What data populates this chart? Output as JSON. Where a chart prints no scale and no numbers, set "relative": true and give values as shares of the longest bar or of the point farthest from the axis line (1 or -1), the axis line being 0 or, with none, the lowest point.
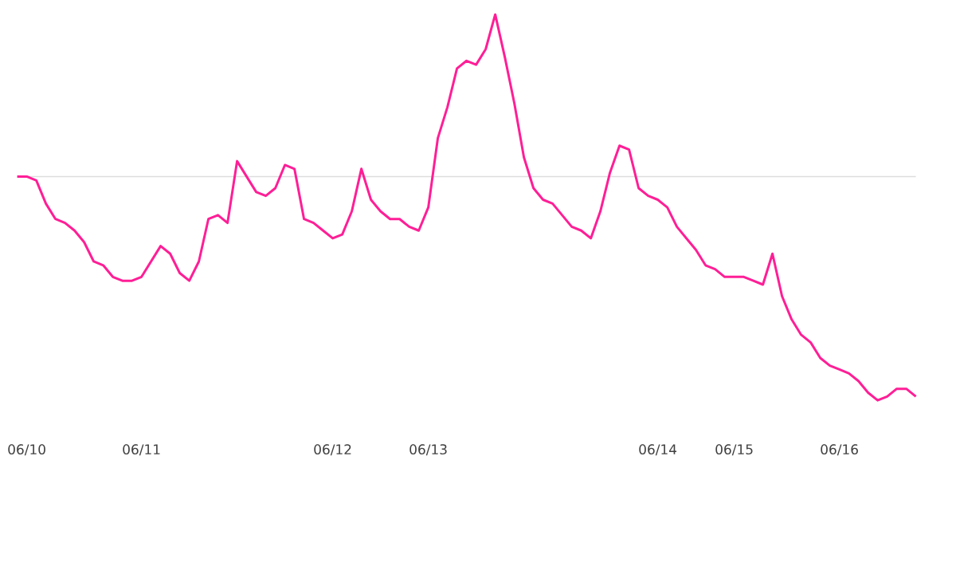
{
  "chart_data": {
    "type": "line",
    "relative": true,
    "color": "#ff1e96",
    "categories": [
      null,
      "06/10",
      null,
      null,
      null,
      null,
      null,
      null,
      null,
      null,
      null,
      null,
      null,
      "06/11",
      null,
      null,
      null,
      null,
      null,
      null,
      null,
      null,
      null,
      null,
      null,
      null,
      null,
      null,
      null,
      null,
      null,
      null,
      null,
      "06/12",
      null,
      null,
      null,
      null,
      null,
      null,
      null,
      null,
      null,
      "06/13",
      null,
      null,
      null,
      null,
      null,
      null,
      null,
      null,
      null,
      null,
      null,
      null,
      null,
      null,
      null,
      null,
      null,
      null,
      null,
      null,
      null,
      null,
      null,
      "06/14",
      null,
      null,
      null,
      null,
      null,
      null,
      null,
      "06/15",
      null,
      null,
      null,
      null,
      null,
      null,
      null,
      null,
      null,
      null,
      "06/16",
      null,
      null,
      null,
      null,
      null,
      null,
      null,
      null
    ],
    "values": [
      0.58,
      0.58,
      0.57,
      0.51,
      0.47,
      0.46,
      0.44,
      0.41,
      0.36,
      0.35,
      0.32,
      0.31,
      0.31,
      0.32,
      0.36,
      0.4,
      0.38,
      0.33,
      0.31,
      0.36,
      0.47,
      0.48,
      0.46,
      0.62,
      0.58,
      0.54,
      0.53,
      0.55,
      0.61,
      0.6,
      0.47,
      0.46,
      0.44,
      0.42,
      0.43,
      0.49,
      0.6,
      0.52,
      0.49,
      0.47,
      0.47,
      0.45,
      0.44,
      0.5,
      0.68,
      0.76,
      0.86,
      0.88,
      0.87,
      0.91,
      1,
      0.89,
      0.77,
      0.63,
      0.55,
      0.52,
      0.51,
      0.48,
      0.45,
      0.44,
      0.42,
      0.49,
      0.59,
      0.66,
      0.65,
      0.55,
      0.53,
      0.52,
      0.5,
      0.45,
      0.42,
      0.39,
      0.35,
      0.34,
      0.32,
      0.32,
      0.32,
      0.31,
      0.3,
      0.38,
      0.27,
      0.21,
      0.17,
      0.15,
      0.11,
      0.09,
      0.08,
      0.07,
      0.05,
      0.02,
      0,
      0.01,
      0.03,
      0.03,
      0.01
    ],
    "ref_lines": [
      {
        "axis": "y",
        "value": 0.58,
        "color": "#dddddd"
      }
    ]
  }
}
